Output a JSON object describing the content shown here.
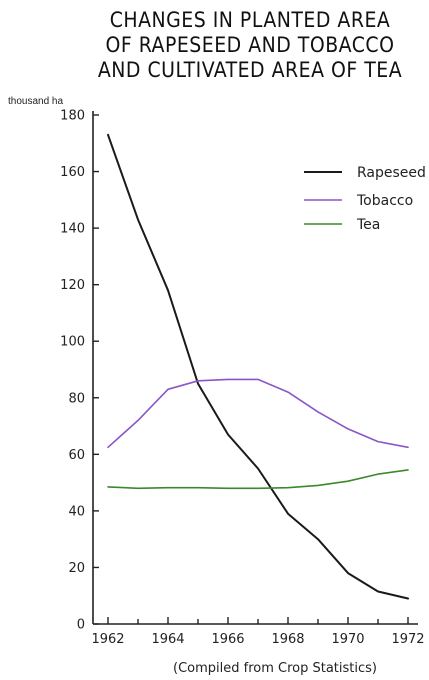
{
  "chart_data": {
    "type": "line",
    "title_lines": [
      "CHANGES IN PLANTED AREA",
      "OF RAPESEED AND TOBACCO",
      "AND CULTIVATED AREA OF TEA"
    ],
    "ylabel": "thousand ha",
    "ylim": [
      0,
      180
    ],
    "yticks": [
      0,
      20,
      40,
      60,
      80,
      100,
      120,
      140,
      160,
      180
    ],
    "xlim": [
      1962,
      1972
    ],
    "xticks": [
      1962,
      1964,
      1966,
      1968,
      1970,
      1972
    ],
    "x": [
      1962,
      1963,
      1964,
      1965,
      1966,
      1967,
      1968,
      1969,
      1970,
      1971,
      1972
    ],
    "grid": false,
    "legend_position": "top-right",
    "series": [
      {
        "name": "Rapeseed",
        "color": "#1a1a1a",
        "values": [
          173,
          143,
          118,
          85,
          67,
          55,
          39,
          30,
          18,
          11.5,
          9
        ]
      },
      {
        "name": "Tobacco",
        "color": "#8a55c8",
        "values": [
          62.5,
          72,
          83,
          86,
          86.5,
          86.5,
          82,
          75,
          69,
          64.5,
          62.5
        ]
      },
      {
        "name": "Tea",
        "color": "#3a8a2a",
        "values": [
          48.5,
          48,
          48.2,
          48.2,
          48,
          48,
          48.2,
          49,
          50.5,
          53,
          54.5
        ]
      }
    ],
    "note": "(Compiled from Crop Statistics)"
  }
}
